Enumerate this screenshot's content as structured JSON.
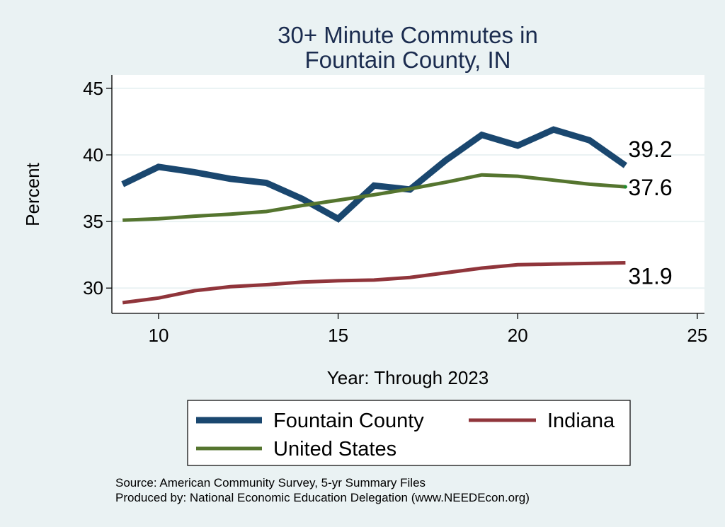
{
  "chart_data": {
    "type": "line",
    "title": [
      "30+ Minute Commutes in",
      "Fountain County, IN"
    ],
    "xlabel": "Year: Through 2023",
    "ylabel": "Percent",
    "xlim": [
      8.7,
      25.2
    ],
    "ylim": [
      28.1,
      46
    ],
    "xticks": [
      10,
      15,
      20,
      25
    ],
    "yticks": [
      30,
      35,
      40,
      45
    ],
    "grid": true,
    "series": [
      {
        "name": "Fountain County",
        "color": "#1A476F",
        "x": [
          9,
          10,
          11,
          12,
          13,
          14,
          15,
          16,
          17,
          18,
          19,
          20,
          21,
          22,
          23
        ],
        "values": [
          37.8,
          39.1,
          38.7,
          38.2,
          37.9,
          36.7,
          35.2,
          37.7,
          37.4,
          39.6,
          41.5,
          40.7,
          41.9,
          41.1,
          39.2
        ],
        "end_label": "39.2"
      },
      {
        "name": "United States",
        "color": "#55752F",
        "x": [
          9,
          10,
          11,
          12,
          13,
          14,
          15,
          16,
          17,
          18,
          19,
          20,
          21,
          22,
          23
        ],
        "values": [
          35.1,
          35.2,
          35.4,
          35.55,
          35.75,
          36.2,
          36.6,
          37.0,
          37.45,
          37.95,
          38.5,
          38.4,
          38.1,
          37.8,
          37.6
        ],
        "end_label": "37.6"
      },
      {
        "name": "Indiana",
        "color": "#90353B",
        "x": [
          9,
          10,
          11,
          12,
          13,
          14,
          15,
          16,
          17,
          18,
          19,
          20,
          21,
          22,
          23
        ],
        "values": [
          28.9,
          29.25,
          29.8,
          30.1,
          30.25,
          30.45,
          30.55,
          30.6,
          30.8,
          31.15,
          31.5,
          31.75,
          31.8,
          31.85,
          31.9
        ],
        "end_label": "31.9"
      }
    ],
    "legend": {
      "placement": "bottom",
      "entries": [
        "Fountain County",
        "Indiana",
        "United States"
      ]
    },
    "notes": [
      "Source: American Community Survey, 5-yr Summary Files",
      "Produced by: National Economic Education Delegation (www.NEEDEcon.org)"
    ]
  }
}
